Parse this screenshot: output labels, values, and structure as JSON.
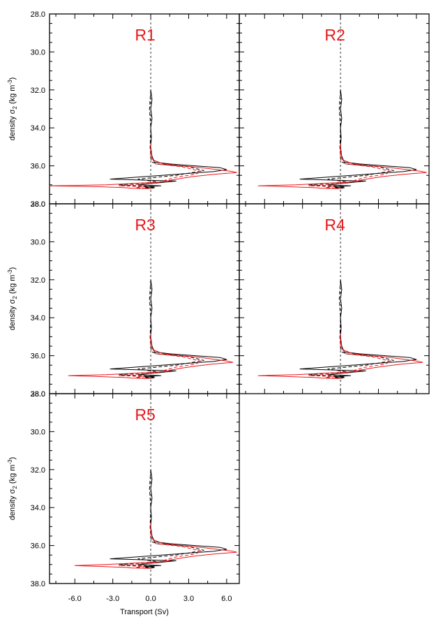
{
  "chart_data": {
    "type": "line",
    "xlabel": "Transport (Sv)",
    "ylabel_main": "density σ",
    "ylabel_sub": "2",
    "ylabel_units": " (kg m",
    "ylabel_units_sup": "-3",
    "ylabel_close": ")",
    "xlim": [
      -8.0,
      7.0
    ],
    "ylim": [
      28.0,
      38.0
    ],
    "y_inverted": true,
    "xticks": [
      -6.0,
      -3.0,
      0.0,
      3.0,
      6.0
    ],
    "xtick_labels": [
      "-6.0",
      "-3.0",
      "0.0",
      "3.0",
      "6.0"
    ],
    "yticks": [
      28.0,
      30.0,
      32.0,
      34.0,
      36.0,
      38.0
    ],
    "ytick_labels": [
      "28.0",
      "30.0",
      "32.0",
      "34.0",
      "36.0",
      "38.0"
    ],
    "grid": false,
    "colors": {
      "black": "#000000",
      "red": "#e8181b",
      "zero_line": "#000000"
    },
    "panels": [
      {
        "title": "R1",
        "series": [
          {
            "color": "black",
            "style": "solid",
            "x": [
              0.0,
              0.1,
              0.0,
              0.1,
              0.0,
              0.05,
              0.0,
              0.1,
              0.3,
              1.5,
              5.5,
              6.0,
              5.0,
              2.0,
              -3.2,
              2.0,
              0.5,
              -1.0,
              0.8,
              -0.5,
              0.3,
              0.0
            ],
            "y": [
              32.0,
              32.5,
              33.0,
              33.5,
              34.0,
              34.5,
              35.0,
              35.5,
              35.8,
              35.9,
              36.1,
              36.2,
              36.3,
              36.45,
              36.7,
              36.8,
              36.9,
              37.0,
              37.05,
              37.1,
              37.15,
              37.2
            ]
          },
          {
            "color": "black",
            "style": "dashed",
            "x": [
              0.0,
              -0.1,
              0.0,
              -0.05,
              0.0,
              0.1,
              0.5,
              3.0,
              4.2,
              2.0,
              -1.0,
              0.5,
              -2.5,
              0.3,
              -0.5,
              0.0
            ],
            "y": [
              32.0,
              33.0,
              34.0,
              35.0,
              35.6,
              35.8,
              35.9,
              36.05,
              36.25,
              36.5,
              36.7,
              36.85,
              37.0,
              37.1,
              37.15,
              37.2
            ]
          },
          {
            "color": "red",
            "style": "solid",
            "x": [
              0.0,
              0.0,
              0.0,
              0.2,
              1.0,
              4.0,
              6.5,
              6.8,
              5.0,
              3.5,
              2.5,
              0.8,
              -3.5,
              -8.0,
              -6.0,
              -4.0,
              -3.0,
              -2.0,
              -1.5,
              0.0
            ],
            "y": [
              34.8,
              35.0,
              35.5,
              35.7,
              35.9,
              36.1,
              36.3,
              36.35,
              36.45,
              36.55,
              36.65,
              36.85,
              37.0,
              37.05,
              37.08,
              37.1,
              37.13,
              37.15,
              37.18,
              37.2
            ]
          },
          {
            "color": "red",
            "style": "dashed",
            "x": [
              0.0,
              0.1,
              0.4,
              2.5,
              4.0,
              3.5,
              2.0,
              1.2,
              0.5,
              -2.5,
              -0.5,
              -1.2,
              0.0
            ],
            "y": [
              35.0,
              35.6,
              35.9,
              36.05,
              36.3,
              36.45,
              36.6,
              36.75,
              36.9,
              37.05,
              37.1,
              37.15,
              37.2
            ]
          }
        ]
      },
      {
        "title": "R2",
        "series": [
          {
            "color": "black",
            "style": "solid",
            "x": [
              0.0,
              0.1,
              0.0,
              0.1,
              0.0,
              0.05,
              0.0,
              0.1,
              0.3,
              1.5,
              5.5,
              6.0,
              5.0,
              2.0,
              -3.2,
              2.0,
              0.5,
              -1.0,
              0.8,
              -0.5,
              0.3,
              0.0
            ],
            "y": [
              32.0,
              32.5,
              33.0,
              33.5,
              34.0,
              34.5,
              35.0,
              35.5,
              35.8,
              35.9,
              36.1,
              36.2,
              36.3,
              36.45,
              36.7,
              36.8,
              36.9,
              37.0,
              37.05,
              37.1,
              37.15,
              37.2
            ]
          },
          {
            "color": "black",
            "style": "dashed",
            "x": [
              0.0,
              -0.1,
              0.0,
              -0.05,
              0.0,
              0.1,
              0.5,
              3.0,
              4.2,
              2.0,
              -1.0,
              0.5,
              -2.5,
              0.3,
              -0.5,
              0.0
            ],
            "y": [
              32.0,
              33.0,
              34.0,
              35.0,
              35.6,
              35.8,
              35.9,
              36.05,
              36.25,
              36.5,
              36.7,
              36.85,
              37.0,
              37.1,
              37.15,
              37.2
            ]
          },
          {
            "color": "red",
            "style": "solid",
            "x": [
              0.0,
              0.0,
              0.0,
              0.2,
              1.0,
              4.0,
              6.5,
              6.8,
              5.0,
              3.5,
              2.5,
              0.8,
              -3.5,
              -6.5,
              -5.0,
              -4.0,
              -3.0,
              -2.0,
              -1.5,
              0.0
            ],
            "y": [
              34.8,
              35.0,
              35.5,
              35.7,
              35.9,
              36.1,
              36.3,
              36.35,
              36.45,
              36.55,
              36.65,
              36.85,
              37.0,
              37.05,
              37.08,
              37.1,
              37.13,
              37.15,
              37.18,
              37.2
            ]
          },
          {
            "color": "red",
            "style": "dashed",
            "x": [
              0.0,
              0.1,
              0.4,
              2.5,
              4.0,
              3.5,
              2.0,
              1.2,
              0.5,
              -2.5,
              -0.5,
              -1.2,
              0.0
            ],
            "y": [
              35.0,
              35.6,
              35.9,
              36.05,
              36.3,
              36.45,
              36.6,
              36.75,
              36.9,
              37.05,
              37.1,
              37.15,
              37.2
            ]
          }
        ]
      },
      {
        "title": "R3",
        "series": [
          {
            "color": "black",
            "style": "solid",
            "x": [
              0.0,
              0.1,
              0.0,
              0.1,
              0.0,
              0.05,
              0.0,
              0.1,
              0.3,
              1.5,
              5.5,
              6.0,
              5.0,
              2.0,
              -3.2,
              2.0,
              0.5,
              -1.0,
              0.8,
              -0.5,
              0.3,
              0.0
            ],
            "y": [
              32.0,
              32.5,
              33.0,
              33.5,
              34.0,
              34.5,
              35.0,
              35.5,
              35.8,
              35.9,
              36.1,
              36.2,
              36.3,
              36.45,
              36.7,
              36.8,
              36.9,
              37.0,
              37.05,
              37.1,
              37.15,
              37.2
            ]
          },
          {
            "color": "black",
            "style": "dashed",
            "x": [
              0.0,
              -0.1,
              0.0,
              -0.05,
              0.0,
              0.1,
              0.5,
              3.0,
              4.2,
              2.0,
              -1.0,
              0.5,
              -2.5,
              0.3,
              -0.5,
              0.0
            ],
            "y": [
              32.0,
              33.0,
              34.0,
              35.0,
              35.6,
              35.8,
              35.9,
              36.05,
              36.25,
              36.5,
              36.7,
              36.85,
              37.0,
              37.1,
              37.15,
              37.2
            ]
          },
          {
            "color": "red",
            "style": "solid",
            "x": [
              0.0,
              0.0,
              0.0,
              0.2,
              1.0,
              4.0,
              6.2,
              6.5,
              4.8,
              3.5,
              2.5,
              0.8,
              -3.5,
              -6.5,
              -5.0,
              -4.0,
              -3.0,
              -2.0,
              -1.5,
              0.0
            ],
            "y": [
              34.8,
              35.0,
              35.5,
              35.7,
              35.9,
              36.1,
              36.3,
              36.35,
              36.45,
              36.55,
              36.65,
              36.85,
              37.0,
              37.05,
              37.08,
              37.1,
              37.13,
              37.15,
              37.18,
              37.2
            ]
          },
          {
            "color": "red",
            "style": "dashed",
            "x": [
              0.0,
              0.1,
              0.4,
              2.5,
              4.0,
              3.5,
              2.0,
              1.2,
              0.5,
              -2.5,
              -0.5,
              -1.2,
              0.0
            ],
            "y": [
              35.0,
              35.6,
              35.9,
              36.05,
              36.3,
              36.45,
              36.6,
              36.75,
              36.9,
              37.05,
              37.1,
              37.15,
              37.2
            ]
          }
        ]
      },
      {
        "title": "R4",
        "series": [
          {
            "color": "black",
            "style": "solid",
            "x": [
              0.0,
              0.1,
              0.0,
              0.1,
              0.0,
              0.05,
              0.0,
              0.1,
              0.3,
              1.5,
              5.5,
              6.0,
              5.0,
              2.0,
              -3.2,
              2.0,
              0.5,
              -1.0,
              0.8,
              -0.5,
              0.3,
              0.0
            ],
            "y": [
              32.0,
              32.5,
              33.0,
              33.5,
              34.0,
              34.5,
              35.0,
              35.5,
              35.8,
              35.9,
              36.1,
              36.2,
              36.3,
              36.45,
              36.7,
              36.8,
              36.9,
              37.0,
              37.05,
              37.1,
              37.15,
              37.2
            ]
          },
          {
            "color": "black",
            "style": "dashed",
            "x": [
              0.0,
              -0.1,
              0.0,
              -0.05,
              0.0,
              0.1,
              0.5,
              3.0,
              4.2,
              2.0,
              -1.0,
              0.5,
              -2.5,
              0.3,
              -0.5,
              0.0
            ],
            "y": [
              32.0,
              33.0,
              34.0,
              35.0,
              35.6,
              35.8,
              35.9,
              36.05,
              36.25,
              36.5,
              36.7,
              36.85,
              37.0,
              37.1,
              37.15,
              37.2
            ]
          },
          {
            "color": "red",
            "style": "solid",
            "x": [
              0.0,
              0.0,
              0.0,
              0.2,
              1.0,
              4.0,
              6.2,
              6.5,
              4.8,
              3.5,
              2.5,
              0.8,
              -3.5,
              -6.5,
              -5.0,
              -4.0,
              -3.0,
              -2.0,
              -1.5,
              0.0
            ],
            "y": [
              34.8,
              35.0,
              35.5,
              35.7,
              35.9,
              36.1,
              36.3,
              36.35,
              36.45,
              36.55,
              36.65,
              36.85,
              37.0,
              37.05,
              37.08,
              37.1,
              37.13,
              37.15,
              37.18,
              37.2
            ]
          },
          {
            "color": "red",
            "style": "dashed",
            "x": [
              0.0,
              0.1,
              0.4,
              2.5,
              4.0,
              3.5,
              2.0,
              1.2,
              0.5,
              -2.5,
              -0.5,
              -1.2,
              0.0
            ],
            "y": [
              35.0,
              35.6,
              35.9,
              36.05,
              36.3,
              36.45,
              36.6,
              36.75,
              36.9,
              37.05,
              37.1,
              37.15,
              37.2
            ]
          }
        ]
      },
      {
        "title": "R5",
        "series": [
          {
            "color": "black",
            "style": "solid",
            "x": [
              0.0,
              0.1,
              0.0,
              0.1,
              0.0,
              0.05,
              0.0,
              0.1,
              0.3,
              1.5,
              5.5,
              6.0,
              5.0,
              2.0,
              -3.2,
              2.0,
              0.5,
              -1.0,
              0.8,
              -0.5,
              0.3,
              0.0
            ],
            "y": [
              32.0,
              32.5,
              33.0,
              33.5,
              34.0,
              34.5,
              35.0,
              35.5,
              35.8,
              35.9,
              36.1,
              36.2,
              36.3,
              36.45,
              36.7,
              36.8,
              36.9,
              37.0,
              37.05,
              37.1,
              37.15,
              37.2
            ]
          },
          {
            "color": "black",
            "style": "dashed",
            "x": [
              0.0,
              -0.1,
              0.0,
              -0.05,
              0.0,
              0.1,
              0.5,
              3.0,
              4.2,
              2.0,
              -1.0,
              0.5,
              -2.5,
              0.3,
              -0.5,
              0.0
            ],
            "y": [
              32.0,
              33.0,
              34.0,
              35.0,
              35.6,
              35.8,
              35.9,
              36.05,
              36.25,
              36.5,
              36.7,
              36.85,
              37.0,
              37.1,
              37.15,
              37.2
            ]
          },
          {
            "color": "red",
            "style": "solid",
            "x": [
              0.0,
              0.0,
              0.0,
              0.2,
              1.0,
              4.0,
              6.5,
              6.8,
              5.0,
              3.5,
              2.5,
              0.8,
              -3.5,
              -6.0,
              -5.0,
              -4.0,
              -3.0,
              -2.0,
              -1.5,
              0.0
            ],
            "y": [
              34.8,
              35.0,
              35.5,
              35.7,
              35.9,
              36.1,
              36.3,
              36.35,
              36.45,
              36.55,
              36.65,
              36.85,
              37.0,
              37.05,
              37.08,
              37.1,
              37.13,
              37.15,
              37.18,
              37.2
            ]
          },
          {
            "color": "red",
            "style": "dashed",
            "x": [
              0.0,
              0.1,
              0.4,
              2.5,
              4.0,
              3.5,
              2.0,
              1.2,
              0.5,
              -2.5,
              -0.5,
              -1.2,
              0.0
            ],
            "y": [
              35.0,
              35.6,
              35.9,
              36.05,
              36.3,
              36.45,
              36.6,
              36.75,
              36.9,
              37.05,
              37.1,
              37.15,
              37.2
            ]
          }
        ]
      }
    ]
  }
}
